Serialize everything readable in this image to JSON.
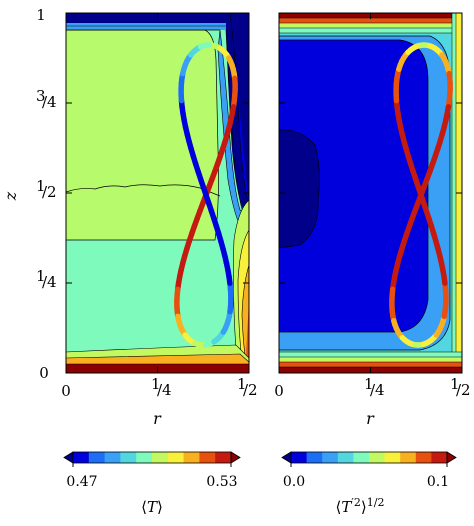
{
  "chart_data": [
    {
      "type": "heatmap",
      "panel": "left",
      "xlabel": "r",
      "ylabel": "z",
      "xlim": [
        0,
        0.5
      ],
      "ylim": [
        0,
        1
      ],
      "x_ticks": [
        "0",
        "1/4",
        "1/2"
      ],
      "y_ticks": [
        "0",
        "1/4",
        "1/2",
        "3/4",
        "1"
      ],
      "colorbar": {
        "label": "⟨T⟩",
        "min_label": "0.47",
        "max_label": "0.53",
        "min": 0.47,
        "max": 0.53,
        "levels": 11
      }
    },
    {
      "type": "heatmap",
      "panel": "right",
      "xlabel": "r",
      "xlim": [
        0,
        0.5
      ],
      "ylim": [
        0,
        1
      ],
      "x_ticks": [
        "0",
        "1/4",
        "1/2"
      ],
      "colorbar": {
        "label": "⟨T′²⟩^1/2",
        "min_label": "0.0",
        "max_label": "0.1",
        "min": 0.0,
        "max": 0.1,
        "levels": 11
      }
    }
  ],
  "colormap": [
    "#00008b",
    "#0000dd",
    "#1e6ef5",
    "#3aa0f5",
    "#52d6e0",
    "#7dfabc",
    "#c2f860",
    "#f8f03a",
    "#f8b020",
    "#e85010",
    "#c41a10",
    "#8b0000"
  ]
}
